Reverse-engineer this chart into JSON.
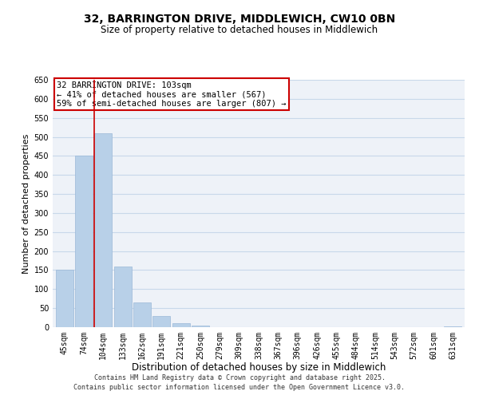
{
  "title": "32, BARRINGTON DRIVE, MIDDLEWICH, CW10 0BN",
  "subtitle": "Size of property relative to detached houses in Middlewich",
  "xlabel": "Distribution of detached houses by size in Middlewich",
  "ylabel": "Number of detached properties",
  "categories": [
    "45sqm",
    "74sqm",
    "104sqm",
    "133sqm",
    "162sqm",
    "191sqm",
    "221sqm",
    "250sqm",
    "279sqm",
    "309sqm",
    "338sqm",
    "367sqm",
    "396sqm",
    "426sqm",
    "455sqm",
    "484sqm",
    "514sqm",
    "543sqm",
    "572sqm",
    "601sqm",
    "631sqm"
  ],
  "values": [
    150,
    450,
    510,
    160,
    65,
    30,
    10,
    5,
    0,
    0,
    0,
    0,
    0,
    0,
    0,
    0,
    0,
    0,
    0,
    0,
    2
  ],
  "bar_color": "#b8d0e8",
  "bar_edge_color": "#9ab8d8",
  "vline_color": "#cc0000",
  "annotation_line1": "32 BARRINGTON DRIVE: 103sqm",
  "annotation_line2": "← 41% of detached houses are smaller (567)",
  "annotation_line3": "59% of semi-detached houses are larger (807) →",
  "annotation_box_color": "#ffffff",
  "annotation_box_edge": "#cc0000",
  "ylim": [
    0,
    650
  ],
  "yticks": [
    0,
    50,
    100,
    150,
    200,
    250,
    300,
    350,
    400,
    450,
    500,
    550,
    600,
    650
  ],
  "grid_color": "#c8d8ea",
  "background_color": "#eef2f8",
  "footer_line1": "Contains HM Land Registry data © Crown copyright and database right 2025.",
  "footer_line2": "Contains public sector information licensed under the Open Government Licence v3.0.",
  "title_fontsize": 10,
  "subtitle_fontsize": 8.5,
  "xlabel_fontsize": 8.5,
  "ylabel_fontsize": 8,
  "tick_fontsize": 7,
  "annotation_fontsize": 7.5,
  "footer_fontsize": 6
}
